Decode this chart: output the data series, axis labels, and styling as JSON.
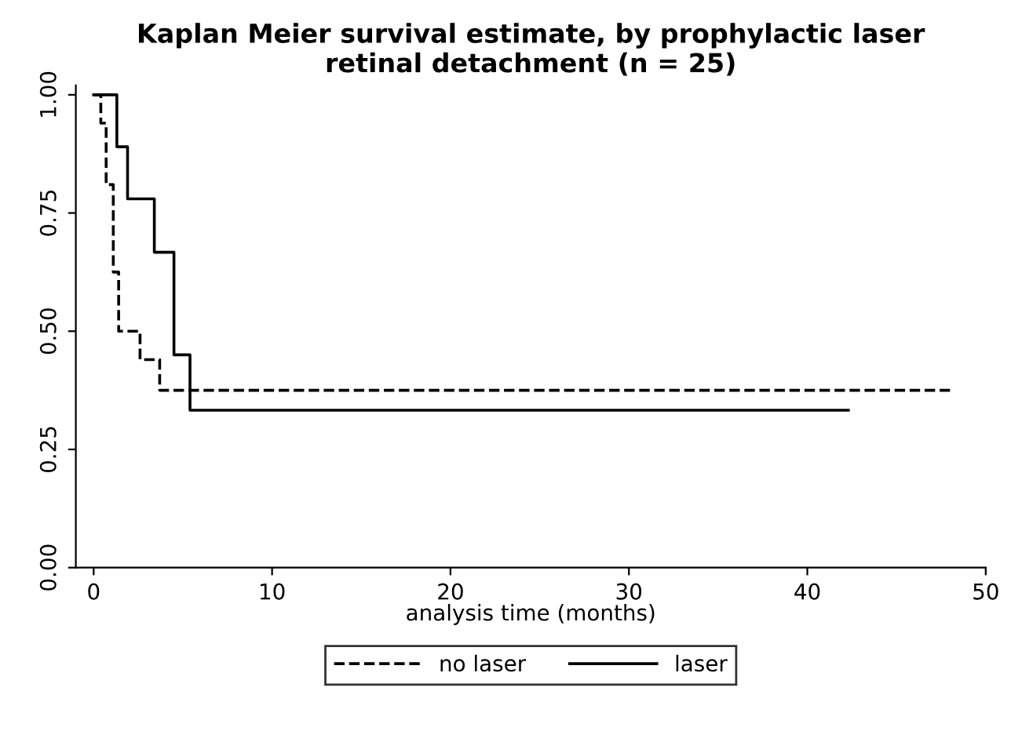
{
  "chart_data": {
    "type": "step",
    "title": "Kaplan Meier survival estimate, by prophylactic laser\nretinal detachment (n = 25)",
    "xlabel": "analysis time (months)",
    "xlim": [
      -1,
      50
    ],
    "xticks": [
      0,
      10,
      20,
      30,
      40,
      50
    ],
    "ylim": [
      0,
      1.02
    ],
    "yticks": [
      {
        "value": 0,
        "label": "0.00"
      },
      {
        "value": 0.25,
        "label": "0.25"
      },
      {
        "value": 0.5,
        "label": "0.50"
      },
      {
        "value": 0.75,
        "label": "0.75"
      },
      {
        "value": 1,
        "label": "1.00"
      }
    ],
    "legend": "bottom",
    "grid": false,
    "series": [
      {
        "name": "no laser",
        "color": "#000000",
        "line_style": "dashed",
        "x": [
          0,
          0.4,
          0.7,
          1.1,
          1.4,
          2.6,
          3.7,
          48
        ],
        "values": [
          1.0,
          0.94,
          0.81,
          0.625,
          0.5,
          0.44,
          0.375,
          0.375
        ]
      },
      {
        "name": "laser",
        "color": "#000000",
        "line_style": "solid",
        "x": [
          0,
          1.3,
          1.9,
          3.4,
          4.5,
          5.4,
          42.3
        ],
        "values": [
          1.0,
          0.89,
          0.78,
          0.667,
          0.45,
          0.333,
          0.333
        ]
      }
    ]
  }
}
